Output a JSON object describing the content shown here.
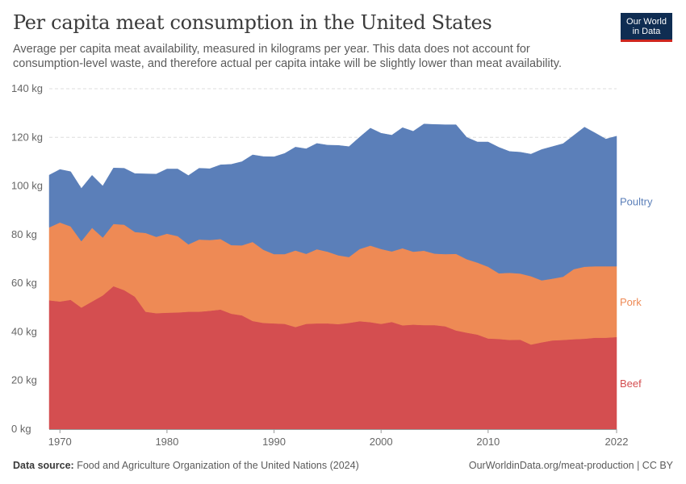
{
  "header": {
    "title": "Per capita meat consumption in the United States",
    "subtitle": "Average per capita meat availability, measured in kilograms per year. This data does not account for consumption-level waste, and therefore actual per capita intake will be slightly lower than meat availability."
  },
  "logo": {
    "line1": "Our World",
    "line2": "in Data",
    "bg_color": "#0f2d52",
    "accent_color": "#ce261e"
  },
  "footer": {
    "source_label": "Data source:",
    "source_text": "Food and Agriculture Organization of the United Nations (2024)",
    "link": "OurWorldinData.org/meat-production | CC BY"
  },
  "chart_data": {
    "type": "area",
    "stacked": true,
    "x": [
      1969,
      1970,
      1971,
      1972,
      1973,
      1974,
      1975,
      1976,
      1977,
      1978,
      1979,
      1980,
      1981,
      1982,
      1983,
      1984,
      1985,
      1986,
      1987,
      1988,
      1989,
      1990,
      1991,
      1992,
      1993,
      1994,
      1995,
      1996,
      1997,
      1998,
      1999,
      2000,
      2001,
      2002,
      2003,
      2004,
      2005,
      2006,
      2007,
      2008,
      2009,
      2010,
      2011,
      2012,
      2013,
      2014,
      2015,
      2016,
      2017,
      2018,
      2019,
      2020,
      2021,
      2022
    ],
    "y_tick_values": [
      0,
      20,
      40,
      60,
      80,
      100,
      120,
      140
    ],
    "y_tick_labels": [
      "0 kg",
      "20 kg",
      "40 kg",
      "60 kg",
      "80 kg",
      "100 kg",
      "120 kg",
      "140 kg"
    ],
    "x_tick_values": [
      1970,
      1980,
      1990,
      2000,
      2010,
      2022
    ],
    "x_tick_labels": [
      "1970",
      "1980",
      "1990",
      "2000",
      "2010",
      "2022"
    ],
    "ylim": [
      0,
      140
    ],
    "xlim": [
      1969,
      2022
    ],
    "grid": true,
    "legend": "right, inline labels",
    "series": [
      {
        "name": "Beef",
        "color": "#d44e50",
        "values": [
          53,
          52.5,
          53.2,
          50,
          52.5,
          55,
          58.8,
          57.2,
          54.5,
          48.3,
          47.7,
          47.9,
          48,
          48.3,
          48.3,
          48.7,
          49.2,
          47.5,
          46.8,
          44.5,
          43.7,
          43.5,
          43.3,
          42,
          43.3,
          43.5,
          43.5,
          43.2,
          43.7,
          44.4,
          44,
          43.3,
          44.1,
          42.7,
          43,
          42.8,
          42.8,
          42.3,
          40.6,
          39.7,
          38.9,
          37.3,
          37.1,
          36.7,
          36.8,
          34.8,
          35.7,
          36.5,
          36.7,
          37,
          37.2,
          37.6,
          37.6,
          37.9
        ]
      },
      {
        "name": "Pork",
        "color": "#ee8a55",
        "values": [
          30,
          32.5,
          30.2,
          27.3,
          30.3,
          23.8,
          25.6,
          26.9,
          26.6,
          32.4,
          31.4,
          32.5,
          31.4,
          27.7,
          29.7,
          29.1,
          29,
          28.2,
          28.8,
          32.5,
          30.1,
          28.5,
          28.7,
          31.5,
          28.8,
          30.5,
          29.5,
          28.3,
          27.1,
          29.7,
          31.5,
          30.8,
          29,
          31.7,
          30,
          30.6,
          29.4,
          29.7,
          31.5,
          30.2,
          29.6,
          29.5,
          27,
          27.6,
          27.2,
          28.1,
          25.5,
          25.4,
          26,
          28.8,
          29.6,
          29.4,
          29.4,
          29.1
        ]
      },
      {
        "name": "Poultry",
        "color": "#5b7fb9",
        "values": [
          21.5,
          21.8,
          22.5,
          21.7,
          21.6,
          21.2,
          23,
          23.2,
          24,
          24.3,
          25.8,
          26.6,
          27.6,
          28.3,
          29.3,
          29.3,
          30.5,
          33.2,
          34.4,
          35.8,
          38.3,
          40,
          41.4,
          42.5,
          43.2,
          43.5,
          43.8,
          45.2,
          45.4,
          46,
          48.3,
          47.6,
          47.8,
          49.6,
          49.5,
          52.1,
          53.1,
          53.2,
          53.1,
          50.1,
          49.6,
          51.3,
          51.8,
          49.9,
          49.9,
          50.2,
          53.8,
          54.3,
          54.7,
          55,
          57.4,
          54.8,
          52.3,
          53.5
        ]
      }
    ]
  }
}
